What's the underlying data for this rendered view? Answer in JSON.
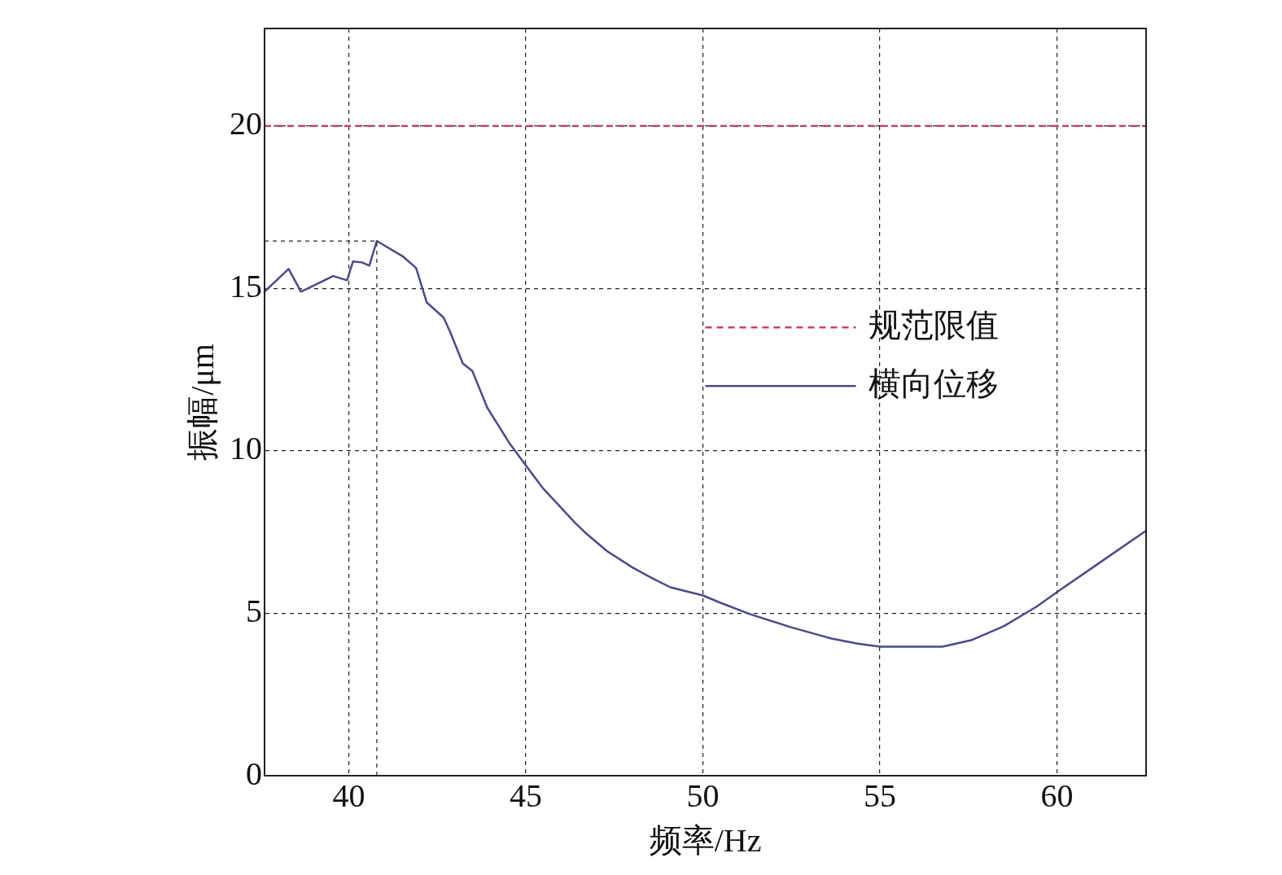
{
  "chart_data": {
    "type": "line",
    "xlabel": "频率/Hz",
    "ylabel": "振幅/μm",
    "xlim": [
      37.62,
      62.52
    ],
    "xticks": [
      40,
      45,
      50,
      55,
      60
    ],
    "ylim": [
      0,
      23
    ],
    "yticks": [
      0,
      5,
      10,
      15,
      20
    ],
    "grid": true,
    "legend": "right",
    "marker": "none",
    "series": [
      {
        "name": "规范限值",
        "color": "#c8406e",
        "line_style": "dashed",
        "x": [
          37.62,
          62.52
        ],
        "values": [
          20,
          20
        ]
      },
      {
        "name": "横向位移",
        "color": "#4a4a8a",
        "line_style": "solid",
        "x": [
          37.62,
          38.3,
          38.65,
          39.56,
          39.95,
          40.12,
          40.37,
          40.58,
          40.79,
          41.53,
          41.9,
          42.2,
          42.68,
          42.87,
          43.22,
          43.49,
          43.91,
          44.53,
          45.0,
          45.49,
          46.02,
          46.37,
          46.72,
          47.3,
          48.01,
          48.57,
          49.08,
          50.0,
          50.48,
          51.34,
          52.49,
          53.64,
          54.34,
          55.0,
          56.77,
          57.58,
          58.5,
          59.42,
          60.11,
          61.04,
          62.52
        ],
        "values": [
          14.9,
          15.6,
          14.9,
          15.38,
          15.25,
          15.83,
          15.8,
          15.7,
          16.46,
          15.98,
          15.63,
          14.57,
          14.1,
          13.64,
          12.69,
          12.46,
          11.33,
          10.25,
          9.55,
          8.84,
          8.22,
          7.81,
          7.44,
          6.91,
          6.41,
          6.08,
          5.8,
          5.55,
          5.33,
          4.97,
          4.57,
          4.22,
          4.07,
          3.97,
          3.97,
          4.17,
          4.6,
          5.2,
          5.73,
          6.43,
          7.54
        ]
      }
    ],
    "ref_lines": [
      {
        "axis": "x",
        "value": 40.79
      },
      {
        "axis": "y",
        "value": 16.46
      }
    ]
  }
}
